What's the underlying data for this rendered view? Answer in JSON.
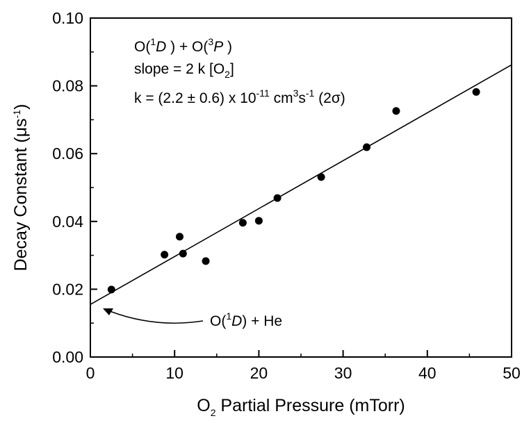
{
  "chart_data": {
    "type": "scatter",
    "xlabel": {
      "prefix": "O",
      "sub": "2",
      "rest": " Partial Pressure (mTorr)"
    },
    "ylabel": {
      "prefix": "Decay Constant (",
      "mu": "μ",
      "rest": "s",
      "sup": "-1",
      "close": ")"
    },
    "xlim": [
      0,
      50
    ],
    "ylim": [
      0.0,
      0.1
    ],
    "xticks": [
      "0",
      "10",
      "20",
      "30",
      "40",
      "50"
    ],
    "yticks": [
      "0.00",
      "0.02",
      "0.04",
      "0.06",
      "0.08",
      "0.10"
    ],
    "points": [
      {
        "x": 2.5,
        "y": 0.0199
      },
      {
        "x": 8.8,
        "y": 0.0302
      },
      {
        "x": 10.6,
        "y": 0.0355
      },
      {
        "x": 11.0,
        "y": 0.0305
      },
      {
        "x": 13.7,
        "y": 0.0283
      },
      {
        "x": 18.1,
        "y": 0.0396
      },
      {
        "x": 20.0,
        "y": 0.0402
      },
      {
        "x": 22.2,
        "y": 0.0469
      },
      {
        "x": 27.4,
        "y": 0.0531
      },
      {
        "x": 32.8,
        "y": 0.0619
      },
      {
        "x": 36.3,
        "y": 0.0726
      },
      {
        "x": 45.8,
        "y": 0.0782
      }
    ],
    "fit_line": {
      "x": [
        0,
        50
      ],
      "y": [
        0.0155,
        0.0862
      ]
    },
    "annotations": {
      "line1": {
        "a": "O(",
        "a_sup": "1",
        "a_it": "D",
        "b": " ) + O(",
        "b_sup": "3",
        "b_it": "P",
        "c": " )"
      },
      "line2": {
        "a": "slope = 2 k [O",
        "a_sub": "2",
        "b": "]"
      },
      "line3": {
        "a": "k = (2.2 ± 0.6) x 10",
        "a_sup": "-11",
        "b": " cm",
        "b_sup": "3",
        "c": "s",
        "c_sup": "-1",
        "d": " (2",
        "sigma": "σ",
        "e": ")"
      },
      "arrow_label": {
        "a": "O(",
        "a_sup": "1",
        "a_it": "D",
        "b": ") + He"
      }
    }
  }
}
